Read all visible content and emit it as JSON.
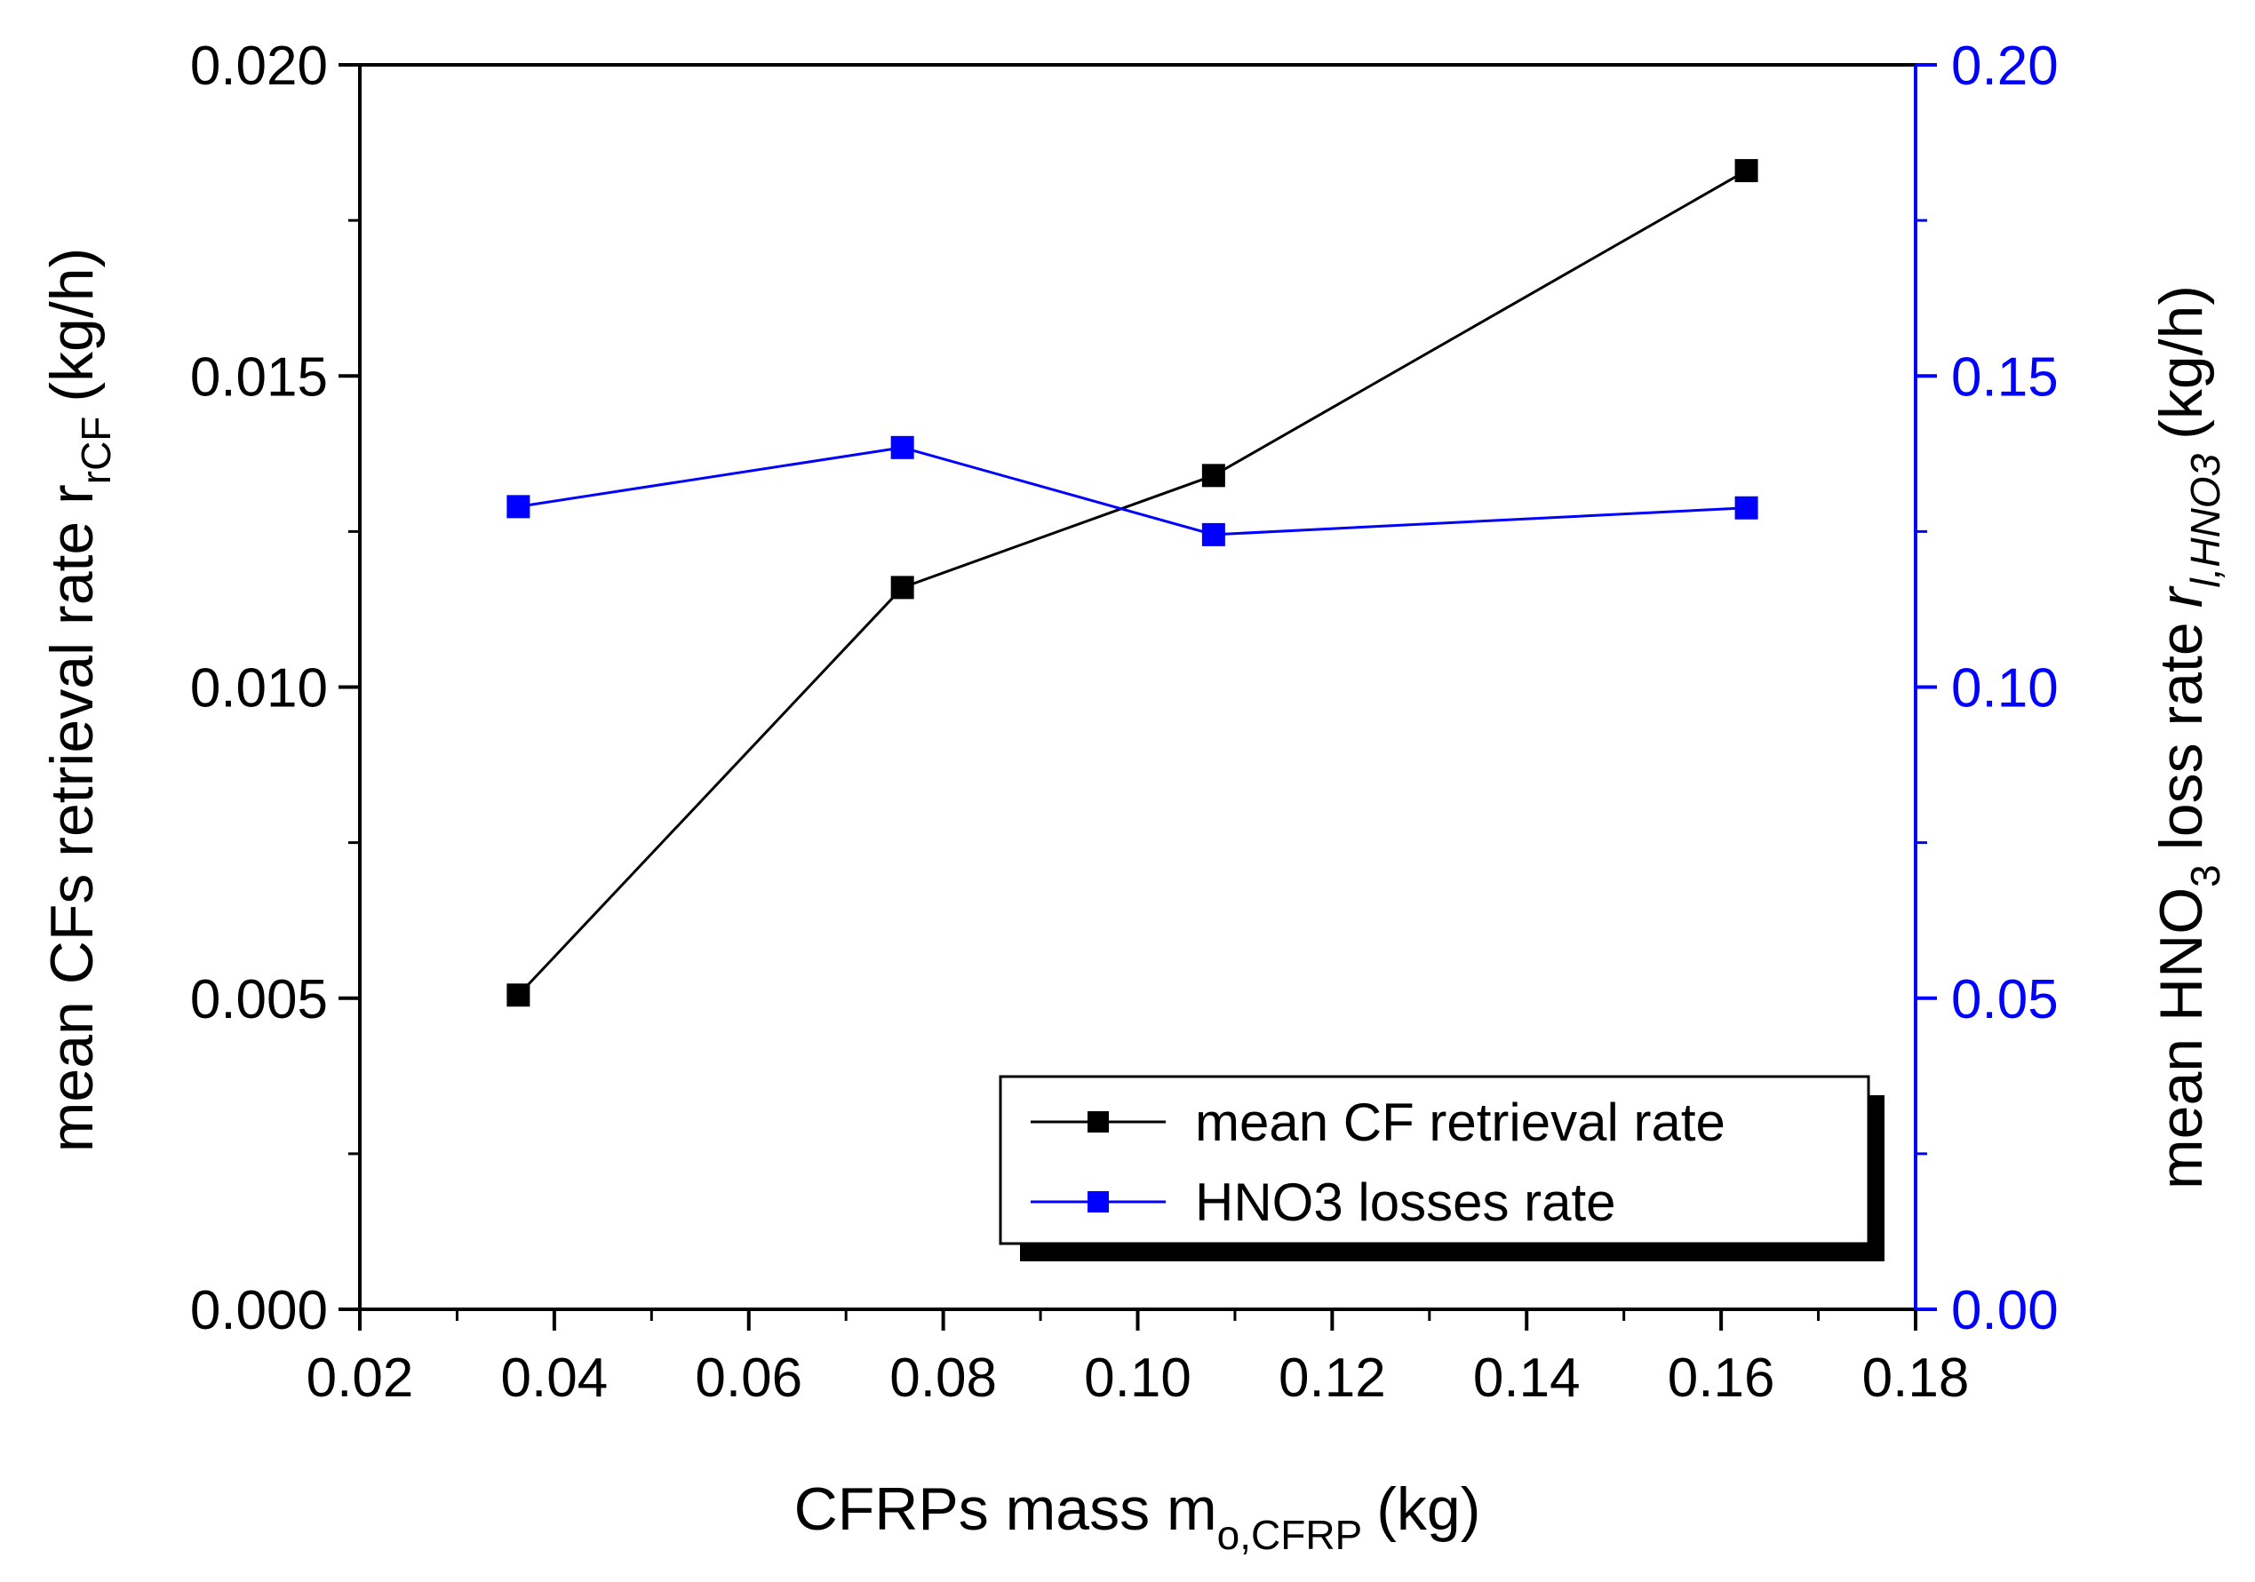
{
  "colors": {
    "left_series": "#000000",
    "right_series": "#0000ff",
    "background": "#ffffff"
  },
  "chart_data": {
    "type": "line",
    "x": [
      0.0363,
      0.0758,
      0.1078,
      0.1626
    ],
    "xlim": [
      0.02,
      0.18
    ],
    "x_ticks": [
      "0.02",
      "0.04",
      "0.06",
      "0.08",
      "0.10",
      "0.12",
      "0.14",
      "0.16",
      "0.18"
    ],
    "xlabel": {
      "main": "CFRPs mass m",
      "sub": "o,CFRP",
      "unit": "(kg)"
    },
    "y_left": {
      "lim": [
        0,
        0.02
      ],
      "ticks": [
        "0.000",
        "0.005",
        "0.010",
        "0.015",
        "0.020"
      ],
      "label": {
        "main": "mean CFs retrieval rate r",
        "sub": "rCF",
        "unit": "(kg/h)"
      }
    },
    "y_right": {
      "lim": [
        0,
        0.2
      ],
      "ticks": [
        "0.00",
        "0.05",
        "0.10",
        "0.15",
        "0.20"
      ],
      "label": {
        "main": "mean HNO",
        "sub3": "3",
        "mid": "loss rate",
        "italic": "r",
        "sub": "l,HNO3",
        "unit": "(kg/h)"
      }
    },
    "series": [
      {
        "name": "mean CF retrieval rate",
        "axis": "left",
        "color": "#000000",
        "values": [
          0.00505,
          0.0116,
          0.0134,
          0.0183
        ]
      },
      {
        "name": "HNO3 losses rate",
        "axis": "right",
        "color": "#0000ff",
        "values": [
          0.129,
          0.1385,
          0.1245,
          0.1288
        ]
      }
    ],
    "legend": {
      "position": "lower-right",
      "entries": [
        "mean CF retrieval rate",
        "HNO3 losses rate"
      ]
    }
  }
}
